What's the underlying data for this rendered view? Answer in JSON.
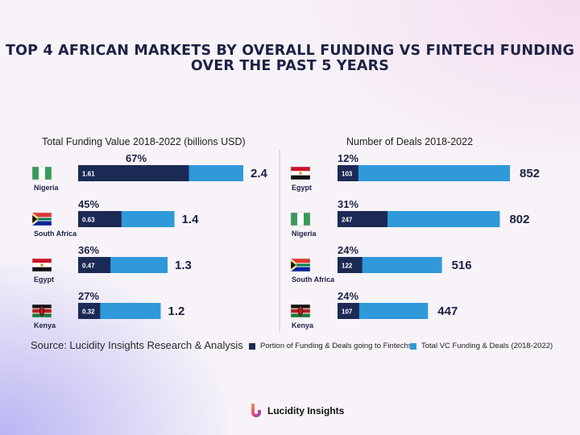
{
  "title_line1": "TOP 4 AFRICAN MARKETS BY OVERALL FUNDING VS FINTECH FUNDING",
  "title_line2": "OVER THE PAST 5 YEARS",
  "source": "Source: Lucidity Insights Research & Analysis",
  "brand": "Lucidity Insights",
  "legend": {
    "fintech": "Portion of Funding & Deals going to Fintechs",
    "total": "Total VC Funding & Deals (2018-2022)"
  },
  "colors": {
    "fintech": "#1b2a55",
    "total": "#2f99d9",
    "title": "#1b2246"
  },
  "chart_data": [
    {
      "type": "bar",
      "orientation": "horizontal",
      "title": "Total Funding Value 2018-2022 (billions USD)",
      "categories": [
        "Nigeria",
        "South Africa",
        "Egypt",
        "Kenya"
      ],
      "flag_icons": [
        "nigeria-flag-icon",
        "south-africa-flag-icon",
        "egypt-flag-icon",
        "kenya-flag-icon"
      ],
      "series": [
        {
          "name": "Portion of Funding & Deals going to Fintechs",
          "values": [
            1.61,
            0.63,
            0.47,
            0.32
          ]
        },
        {
          "name": "Total VC Funding & Deals (2018-2022)",
          "values": [
            2.4,
            1.4,
            1.3,
            1.2
          ]
        }
      ],
      "total_labels": [
        "2.4",
        "1.4",
        "1.3",
        "1.2"
      ],
      "fintech_labels": [
        "1.61",
        "0.63",
        "0.47",
        "0.32"
      ],
      "percent_labels": [
        "67%",
        "45%",
        "36%",
        "27%"
      ],
      "xlim": [
        0,
        2.4
      ]
    },
    {
      "type": "bar",
      "orientation": "horizontal",
      "title": "Number of Deals 2018-2022",
      "categories": [
        "Egypt",
        "Nigeria",
        "South Africa",
        "Kenya"
      ],
      "flag_icons": [
        "egypt-flag-icon",
        "nigeria-flag-icon",
        "south-africa-flag-icon",
        "kenya-flag-icon"
      ],
      "series": [
        {
          "name": "Portion of Funding & Deals going to Fintechs",
          "values": [
            103,
            247,
            122,
            107
          ]
        },
        {
          "name": "Total VC Funding & Deals (2018-2022)",
          "values": [
            852,
            802,
            516,
            447
          ]
        }
      ],
      "total_labels": [
        "852",
        "802",
        "516",
        "447"
      ],
      "fintech_labels": [
        "103",
        "247",
        "122",
        "107"
      ],
      "percent_labels": [
        "12%",
        "31%",
        "24%",
        "24%"
      ],
      "xlim": [
        0,
        852
      ]
    }
  ]
}
